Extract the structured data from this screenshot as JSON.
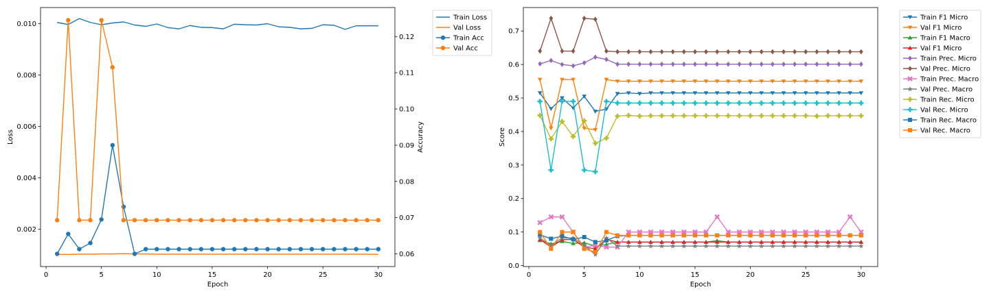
{
  "chart_data": [
    {
      "type": "line",
      "xlabel": "Epoch",
      "ylabel": "Loss",
      "y2label": "Accuracy",
      "x_ticks": [
        0,
        5,
        10,
        15,
        20,
        25,
        30
      ],
      "y_ticks": [
        0.002,
        0.004,
        0.006,
        0.008,
        0.01
      ],
      "y2_ticks": [
        0.06,
        0.07,
        0.08,
        0.09,
        0.1,
        0.11,
        0.12
      ],
      "xlim": [
        -0.5,
        31.5
      ],
      "ylim": [
        0.00055,
        0.01063
      ],
      "y2lim": [
        0.0565,
        0.128
      ],
      "legend_position": "outside upper right",
      "x": [
        1,
        2,
        3,
        4,
        5,
        6,
        7,
        8,
        9,
        10,
        11,
        12,
        13,
        14,
        15,
        16,
        17,
        18,
        19,
        20,
        21,
        22,
        23,
        24,
        25,
        26,
        27,
        28,
        29,
        30
      ],
      "series": [
        {
          "name": "Train Loss",
          "axis": "left",
          "color": "#1f77b4",
          "marker": "none",
          "values": [
            0.01005,
            0.00997,
            0.0102,
            0.01005,
            0.00996,
            0.01003,
            0.01007,
            0.00995,
            0.0099,
            0.00999,
            0.00985,
            0.0098,
            0.00993,
            0.00986,
            0.00985,
            0.0098,
            0.00998,
            0.00996,
            0.00995,
            0.01,
            0.00988,
            0.00986,
            0.0098,
            0.00982,
            0.00996,
            0.00994,
            0.00978,
            0.00992,
            0.00992,
            0.00992
          ]
        },
        {
          "name": "Val Loss",
          "axis": "left",
          "color": "#ff7f0e",
          "marker": "none",
          "values": [
            0.00102,
            0.00102,
            0.00103,
            0.00103,
            0.00104,
            0.00104,
            0.00105,
            0.00104,
            0.00104,
            0.00103,
            0.00103,
            0.00103,
            0.00103,
            0.00103,
            0.00103,
            0.00103,
            0.00103,
            0.00103,
            0.00103,
            0.00103,
            0.00103,
            0.00103,
            0.00103,
            0.00103,
            0.00103,
            0.00103,
            0.00103,
            0.00103,
            0.00103,
            0.00102
          ]
        },
        {
          "name": "Train Acc",
          "axis": "right",
          "color": "#1f77b4",
          "marker": "circle",
          "values": [
            0.06,
            0.0655,
            0.0613,
            0.063,
            0.0695,
            0.09,
            0.073,
            0.06,
            0.0613,
            0.0613,
            0.0613,
            0.0613,
            0.0613,
            0.0613,
            0.0613,
            0.0613,
            0.0613,
            0.0613,
            0.0613,
            0.0613,
            0.0613,
            0.0613,
            0.0613,
            0.0613,
            0.0613,
            0.0613,
            0.0613,
            0.0613,
            0.0613,
            0.0613
          ]
        },
        {
          "name": "Val Acc",
          "axis": "right",
          "color": "#ff7f0e",
          "marker": "circle",
          "values": [
            0.0693,
            0.1245,
            0.0693,
            0.0693,
            0.1245,
            0.1115,
            0.0693,
            0.0693,
            0.0693,
            0.0693,
            0.0693,
            0.0693,
            0.0693,
            0.0693,
            0.0693,
            0.0693,
            0.0693,
            0.0693,
            0.0693,
            0.0693,
            0.0693,
            0.0693,
            0.0693,
            0.0693,
            0.0693,
            0.0693,
            0.0693,
            0.0693,
            0.0693,
            0.0693
          ]
        }
      ]
    },
    {
      "type": "line",
      "xlabel": "Epoch",
      "ylabel": "Score",
      "x_ticks": [
        0,
        5,
        10,
        15,
        20,
        25,
        30
      ],
      "y_ticks": [
        0.0,
        0.1,
        0.2,
        0.3,
        0.4,
        0.5,
        0.6,
        0.7
      ],
      "xlim": [
        -0.5,
        31.5
      ],
      "ylim": [
        -0.003,
        0.77
      ],
      "legend_position": "outside upper right",
      "x": [
        1,
        2,
        3,
        4,
        5,
        6,
        7,
        8,
        9,
        10,
        11,
        12,
        13,
        14,
        15,
        16,
        17,
        18,
        19,
        20,
        21,
        22,
        23,
        24,
        25,
        26,
        27,
        28,
        29,
        30
      ],
      "series": [
        {
          "name": "Train F1 Micro",
          "color": "#1f77b4",
          "marker": "triangle-down",
          "values": [
            0.515,
            0.468,
            0.5,
            0.47,
            0.505,
            0.46,
            0.467,
            0.513,
            0.515,
            0.513,
            0.515,
            0.515,
            0.515,
            0.515,
            0.515,
            0.515,
            0.515,
            0.515,
            0.515,
            0.515,
            0.515,
            0.515,
            0.515,
            0.515,
            0.515,
            0.515,
            0.515,
            0.515,
            0.515,
            0.515
          ]
        },
        {
          "name": "Val F1 Micro",
          "color": "#ff7f0e",
          "marker": "triangle-down",
          "values": [
            0.555,
            0.41,
            0.555,
            0.555,
            0.41,
            0.405,
            0.555,
            0.55,
            0.55,
            0.55,
            0.55,
            0.55,
            0.55,
            0.55,
            0.55,
            0.55,
            0.55,
            0.55,
            0.55,
            0.55,
            0.55,
            0.55,
            0.55,
            0.55,
            0.55,
            0.55,
            0.55,
            0.55,
            0.55,
            0.55
          ]
        },
        {
          "name": "Train F1 Macro",
          "color": "#2ca02c",
          "marker": "triangle-up",
          "values": [
            0.075,
            0.065,
            0.072,
            0.066,
            0.068,
            0.058,
            0.063,
            0.07,
            0.07,
            0.07,
            0.07,
            0.07,
            0.07,
            0.07,
            0.07,
            0.07,
            0.074,
            0.07,
            0.07,
            0.07,
            0.07,
            0.07,
            0.07,
            0.07,
            0.07,
            0.07,
            0.07,
            0.07,
            0.07,
            0.07
          ]
        },
        {
          "name": "Val F1 Micro",
          "color": "#d62728",
          "marker": "triangle-up",
          "values": [
            0.078,
            0.055,
            0.077,
            0.078,
            0.055,
            0.05,
            0.078,
            0.07,
            0.07,
            0.07,
            0.07,
            0.07,
            0.07,
            0.07,
            0.07,
            0.07,
            0.07,
            0.07,
            0.07,
            0.07,
            0.07,
            0.07,
            0.07,
            0.07,
            0.07,
            0.07,
            0.07,
            0.07,
            0.07,
            0.07
          ]
        },
        {
          "name": "Train Prec. Micro",
          "color": "#9467bd",
          "marker": "diamond",
          "values": [
            0.602,
            0.612,
            0.6,
            0.596,
            0.605,
            0.622,
            0.615,
            0.601,
            0.601,
            0.601,
            0.601,
            0.601,
            0.601,
            0.601,
            0.601,
            0.601,
            0.601,
            0.601,
            0.601,
            0.601,
            0.601,
            0.601,
            0.601,
            0.601,
            0.601,
            0.601,
            0.601,
            0.601,
            0.601,
            0.601
          ]
        },
        {
          "name": "Val Prec. Micro",
          "color": "#8c564b",
          "marker": "diamond",
          "values": [
            0.64,
            0.738,
            0.64,
            0.64,
            0.738,
            0.735,
            0.64,
            0.638,
            0.638,
            0.638,
            0.638,
            0.638,
            0.638,
            0.638,
            0.638,
            0.638,
            0.638,
            0.638,
            0.638,
            0.638,
            0.638,
            0.638,
            0.638,
            0.638,
            0.638,
            0.638,
            0.638,
            0.638,
            0.638,
            0.638
          ]
        },
        {
          "name": "Train Prec. Macro",
          "color": "#e377c2",
          "marker": "x",
          "values": [
            0.128,
            0.145,
            0.145,
            0.1,
            0.055,
            0.06,
            0.055,
            0.055,
            0.1,
            0.1,
            0.1,
            0.1,
            0.1,
            0.1,
            0.1,
            0.1,
            0.145,
            0.1,
            0.1,
            0.1,
            0.1,
            0.1,
            0.1,
            0.1,
            0.1,
            0.1,
            0.1,
            0.1,
            0.145,
            0.1
          ]
        },
        {
          "name": "Val Prec. Macro",
          "color": "#7f7f7f",
          "marker": "star",
          "values": [
            0.082,
            0.06,
            0.082,
            0.082,
            0.06,
            0.033,
            0.082,
            0.058,
            0.058,
            0.058,
            0.058,
            0.058,
            0.058,
            0.058,
            0.058,
            0.058,
            0.058,
            0.058,
            0.058,
            0.058,
            0.058,
            0.058,
            0.058,
            0.058,
            0.058,
            0.058,
            0.058,
            0.058,
            0.058,
            0.058
          ]
        },
        {
          "name": "Train Rec. Micro",
          "color": "#bcbd22",
          "marker": "plus",
          "values": [
            0.448,
            0.378,
            0.43,
            0.385,
            0.432,
            0.365,
            0.38,
            0.446,
            0.448,
            0.446,
            0.447,
            0.447,
            0.447,
            0.447,
            0.447,
            0.447,
            0.447,
            0.447,
            0.447,
            0.447,
            0.447,
            0.447,
            0.447,
            0.447,
            0.447,
            0.446,
            0.447,
            0.447,
            0.447,
            0.447
          ]
        },
        {
          "name": "Val Rec. Micro",
          "color": "#17becf",
          "marker": "plus",
          "values": [
            0.49,
            0.285,
            0.49,
            0.49,
            0.285,
            0.28,
            0.49,
            0.485,
            0.485,
            0.485,
            0.485,
            0.485,
            0.485,
            0.485,
            0.485,
            0.485,
            0.485,
            0.485,
            0.485,
            0.485,
            0.485,
            0.485,
            0.485,
            0.485,
            0.485,
            0.485,
            0.485,
            0.485,
            0.485,
            0.485
          ]
        },
        {
          "name": "Train Rec. Macro",
          "color": "#1f77b4",
          "marker": "square",
          "values": [
            0.092,
            0.08,
            0.088,
            0.078,
            0.085,
            0.07,
            0.075,
            0.088,
            0.09,
            0.09,
            0.09,
            0.09,
            0.09,
            0.09,
            0.09,
            0.09,
            0.09,
            0.09,
            0.09,
            0.09,
            0.09,
            0.09,
            0.09,
            0.09,
            0.09,
            0.09,
            0.09,
            0.09,
            0.09,
            0.09
          ]
        },
        {
          "name": "Val Rec. Macro",
          "color": "#ff7f0e",
          "marker": "square",
          "values": [
            0.1,
            0.05,
            0.1,
            0.1,
            0.05,
            0.04,
            0.1,
            0.09,
            0.09,
            0.09,
            0.09,
            0.09,
            0.09,
            0.09,
            0.09,
            0.09,
            0.09,
            0.09,
            0.09,
            0.09,
            0.09,
            0.09,
            0.09,
            0.09,
            0.09,
            0.09,
            0.09,
            0.09,
            0.09,
            0.09
          ]
        }
      ]
    }
  ]
}
